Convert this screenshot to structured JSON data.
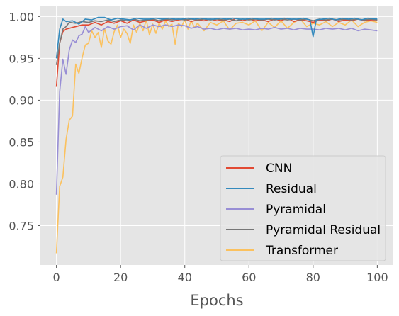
{
  "chart_data": {
    "type": "line",
    "title": "",
    "xlabel": "Epochs",
    "ylabel": "",
    "xlim": [
      -5,
      105
    ],
    "ylim": [
      0.703,
      1.013
    ],
    "x_ticks": [
      0,
      20,
      40,
      60,
      80,
      100
    ],
    "x_tick_labels": [
      "0",
      "20",
      "40",
      "60",
      "80",
      "100"
    ],
    "y_ticks": [
      0.75,
      0.8,
      0.85,
      0.9,
      0.95,
      1.0
    ],
    "y_tick_labels": [
      "0.75",
      "0.80",
      "0.85",
      "0.90",
      "0.95",
      "1.00"
    ],
    "grid": true,
    "legend_position": "lower-right",
    "series": [
      {
        "name": "CNN",
        "color": "#E24A33",
        "points": [
          [
            0,
            0.916
          ],
          [
            1,
            0.968
          ],
          [
            2,
            0.982
          ],
          [
            3,
            0.985
          ],
          [
            5,
            0.987
          ],
          [
            8,
            0.99
          ],
          [
            10,
            0.99
          ],
          [
            12,
            0.993
          ],
          [
            14,
            0.99
          ],
          [
            16,
            0.994
          ],
          [
            18,
            0.992
          ],
          [
            20,
            0.995
          ],
          [
            22,
            0.992
          ],
          [
            24,
            0.996
          ],
          [
            26,
            0.993
          ],
          [
            28,
            0.995
          ],
          [
            30,
            0.996
          ],
          [
            32,
            0.993
          ],
          [
            34,
            0.996
          ],
          [
            36,
            0.994
          ],
          [
            38,
            0.996
          ],
          [
            40,
            0.997
          ],
          [
            42,
            0.994
          ],
          [
            44,
            0.996
          ],
          [
            46,
            0.995
          ],
          [
            48,
            0.997
          ],
          [
            50,
            0.995
          ],
          [
            52,
            0.996
          ],
          [
            54,
            0.994
          ],
          [
            56,
            0.998
          ],
          [
            58,
            0.995
          ],
          [
            60,
            0.997
          ],
          [
            62,
            0.995
          ],
          [
            64,
            0.996
          ],
          [
            66,
            0.994
          ],
          [
            68,
            0.997
          ],
          [
            70,
            0.995
          ],
          [
            72,
            0.998
          ],
          [
            74,
            0.994
          ],
          [
            76,
            0.996
          ],
          [
            78,
            0.995
          ],
          [
            80,
            0.993
          ],
          [
            82,
            0.996
          ],
          [
            84,
            0.995
          ],
          [
            86,
            0.997
          ],
          [
            88,
            0.994
          ],
          [
            90,
            0.996
          ],
          [
            92,
            0.995
          ],
          [
            94,
            0.997
          ],
          [
            96,
            0.995
          ],
          [
            98,
            0.996
          ],
          [
            100,
            0.996
          ]
        ]
      },
      {
        "name": "Residual",
        "color": "#348ABD",
        "points": [
          [
            0,
            0.95
          ],
          [
            1,
            0.985
          ],
          [
            2,
            0.997
          ],
          [
            3,
            0.994
          ],
          [
            5,
            0.995
          ],
          [
            7,
            0.991
          ],
          [
            9,
            0.997
          ],
          [
            11,
            0.996
          ],
          [
            13,
            0.999
          ],
          [
            15,
            0.999
          ],
          [
            17,
            0.996
          ],
          [
            19,
            0.998
          ],
          [
            21,
            0.997
          ],
          [
            23,
            0.996
          ],
          [
            25,
            0.998
          ],
          [
            27,
            0.997
          ],
          [
            29,
            0.997
          ],
          [
            31,
            0.998
          ],
          [
            33,
            0.997
          ],
          [
            35,
            0.998
          ],
          [
            37,
            0.997
          ],
          [
            39,
            0.997
          ],
          [
            41,
            0.998
          ],
          [
            43,
            0.997
          ],
          [
            45,
            0.998
          ],
          [
            47,
            0.997
          ],
          [
            49,
            0.997
          ],
          [
            51,
            0.998
          ],
          [
            53,
            0.997
          ],
          [
            55,
            0.998
          ],
          [
            57,
            0.997
          ],
          [
            59,
            0.997
          ],
          [
            61,
            0.998
          ],
          [
            63,
            0.997
          ],
          [
            65,
            0.997
          ],
          [
            67,
            0.998
          ],
          [
            69,
            0.997
          ],
          [
            71,
            0.998
          ],
          [
            73,
            0.997
          ],
          [
            75,
            0.997
          ],
          [
            77,
            0.998
          ],
          [
            79,
            0.996
          ],
          [
            80,
            0.976
          ],
          [
            81,
            0.996
          ],
          [
            83,
            0.997
          ],
          [
            85,
            0.998
          ],
          [
            87,
            0.996
          ],
          [
            89,
            0.998
          ],
          [
            91,
            0.997
          ],
          [
            93,
            0.998
          ],
          [
            95,
            0.996
          ],
          [
            97,
            0.998
          ],
          [
            100,
            0.997
          ]
        ]
      },
      {
        "name": "Pyramidal",
        "color": "#988ED5",
        "points": [
          [
            0,
            0.787
          ],
          [
            1,
            0.91
          ],
          [
            2,
            0.949
          ],
          [
            3,
            0.931
          ],
          [
            4,
            0.96
          ],
          [
            5,
            0.972
          ],
          [
            6,
            0.969
          ],
          [
            7,
            0.977
          ],
          [
            8,
            0.979
          ],
          [
            9,
            0.988
          ],
          [
            10,
            0.981
          ],
          [
            12,
            0.987
          ],
          [
            14,
            0.983
          ],
          [
            16,
            0.988
          ],
          [
            18,
            0.985
          ],
          [
            20,
            0.988
          ],
          [
            22,
            0.989
          ],
          [
            24,
            0.984
          ],
          [
            26,
            0.99
          ],
          [
            28,
            0.986
          ],
          [
            30,
            0.99
          ],
          [
            32,
            0.988
          ],
          [
            34,
            0.99
          ],
          [
            36,
            0.988
          ],
          [
            38,
            0.99
          ],
          [
            40,
            0.989
          ],
          [
            42,
            0.986
          ],
          [
            44,
            0.988
          ],
          [
            46,
            0.985
          ],
          [
            48,
            0.986
          ],
          [
            50,
            0.984
          ],
          [
            52,
            0.986
          ],
          [
            54,
            0.985
          ],
          [
            56,
            0.986
          ],
          [
            58,
            0.984
          ],
          [
            60,
            0.985
          ],
          [
            62,
            0.984
          ],
          [
            64,
            0.986
          ],
          [
            66,
            0.985
          ],
          [
            68,
            0.987
          ],
          [
            70,
            0.985
          ],
          [
            72,
            0.986
          ],
          [
            74,
            0.984
          ],
          [
            76,
            0.986
          ],
          [
            78,
            0.985
          ],
          [
            80,
            0.985
          ],
          [
            82,
            0.984
          ],
          [
            84,
            0.986
          ],
          [
            86,
            0.985
          ],
          [
            88,
            0.986
          ],
          [
            90,
            0.984
          ],
          [
            92,
            0.986
          ],
          [
            94,
            0.983
          ],
          [
            96,
            0.985
          ],
          [
            98,
            0.984
          ],
          [
            100,
            0.983
          ]
        ]
      },
      {
        "name": "Pyramidal Residual",
        "color": "#777777",
        "points": [
          [
            0,
            0.942
          ],
          [
            1,
            0.968
          ],
          [
            2,
            0.985
          ],
          [
            3,
            0.988
          ],
          [
            4,
            0.993
          ],
          [
            6,
            0.992
          ],
          [
            8,
            0.994
          ],
          [
            10,
            0.993
          ],
          [
            12,
            0.995
          ],
          [
            14,
            0.994
          ],
          [
            16,
            0.996
          ],
          [
            18,
            0.994
          ],
          [
            20,
            0.996
          ],
          [
            22,
            0.995
          ],
          [
            24,
            0.997
          ],
          [
            26,
            0.995
          ],
          [
            28,
            0.996
          ],
          [
            30,
            0.997
          ],
          [
            32,
            0.995
          ],
          [
            34,
            0.997
          ],
          [
            36,
            0.996
          ],
          [
            38,
            0.997
          ],
          [
            40,
            0.996
          ],
          [
            42,
            0.997
          ],
          [
            44,
            0.996
          ],
          [
            46,
            0.997
          ],
          [
            48,
            0.996
          ],
          [
            50,
            0.997
          ],
          [
            52,
            0.996
          ],
          [
            54,
            0.997
          ],
          [
            56,
            0.995
          ],
          [
            58,
            0.997
          ],
          [
            60,
            0.996
          ],
          [
            62,
            0.997
          ],
          [
            64,
            0.996
          ],
          [
            66,
            0.997
          ],
          [
            68,
            0.996
          ],
          [
            70,
            0.997
          ],
          [
            72,
            0.996
          ],
          [
            74,
            0.997
          ],
          [
            76,
            0.996
          ],
          [
            78,
            0.997
          ],
          [
            80,
            0.995
          ],
          [
            82,
            0.997
          ],
          [
            84,
            0.996
          ],
          [
            86,
            0.997
          ],
          [
            88,
            0.996
          ],
          [
            90,
            0.997
          ],
          [
            92,
            0.996
          ],
          [
            94,
            0.997
          ],
          [
            96,
            0.996
          ],
          [
            98,
            0.997
          ],
          [
            100,
            0.996
          ]
        ]
      },
      {
        "name": "Transformer",
        "color": "#FBC15E",
        "points": [
          [
            0,
            0.717
          ],
          [
            1,
            0.797
          ],
          [
            2,
            0.808
          ],
          [
            3,
            0.853
          ],
          [
            4,
            0.876
          ],
          [
            5,
            0.881
          ],
          [
            6,
            0.943
          ],
          [
            7,
            0.932
          ],
          [
            8,
            0.951
          ],
          [
            9,
            0.966
          ],
          [
            10,
            0.968
          ],
          [
            11,
            0.983
          ],
          [
            12,
            0.975
          ],
          [
            13,
            0.981
          ],
          [
            14,
            0.963
          ],
          [
            15,
            0.986
          ],
          [
            16,
            0.971
          ],
          [
            17,
            0.967
          ],
          [
            18,
            0.982
          ],
          [
            19,
            0.99
          ],
          [
            20,
            0.975
          ],
          [
            21,
            0.985
          ],
          [
            22,
            0.98
          ],
          [
            23,
            0.968
          ],
          [
            24,
            0.99
          ],
          [
            25,
            0.981
          ],
          [
            26,
            0.992
          ],
          [
            27,
            0.983
          ],
          [
            28,
            0.996
          ],
          [
            29,
            0.978
          ],
          [
            30,
            0.991
          ],
          [
            31,
            0.98
          ],
          [
            32,
            0.992
          ],
          [
            33,
            0.985
          ],
          [
            34,
            0.995
          ],
          [
            35,
            0.988
          ],
          [
            36,
            0.991
          ],
          [
            37,
            0.967
          ],
          [
            38,
            0.992
          ],
          [
            39,
            0.988
          ],
          [
            40,
            0.996
          ],
          [
            41,
            0.985
          ],
          [
            42,
            0.995
          ],
          [
            43,
            0.987
          ],
          [
            44,
            0.992
          ],
          [
            46,
            0.983
          ],
          [
            48,
            0.993
          ],
          [
            50,
            0.99
          ],
          [
            52,
            0.995
          ],
          [
            54,
            0.984
          ],
          [
            56,
            0.992
          ],
          [
            58,
            0.993
          ],
          [
            60,
            0.99
          ],
          [
            62,
            0.995
          ],
          [
            64,
            0.983
          ],
          [
            66,
            0.993
          ],
          [
            68,
            0.987
          ],
          [
            70,
            0.995
          ],
          [
            72,
            0.986
          ],
          [
            74,
            0.993
          ],
          [
            76,
            0.997
          ],
          [
            78,
            0.988
          ],
          [
            80,
            0.992
          ],
          [
            82,
            0.99
          ],
          [
            84,
            0.994
          ],
          [
            86,
            0.988
          ],
          [
            88,
            0.993
          ],
          [
            90,
            0.99
          ],
          [
            92,
            0.996
          ],
          [
            94,
            0.988
          ],
          [
            96,
            0.993
          ],
          [
            98,
            0.995
          ],
          [
            100,
            0.993
          ]
        ]
      }
    ]
  }
}
